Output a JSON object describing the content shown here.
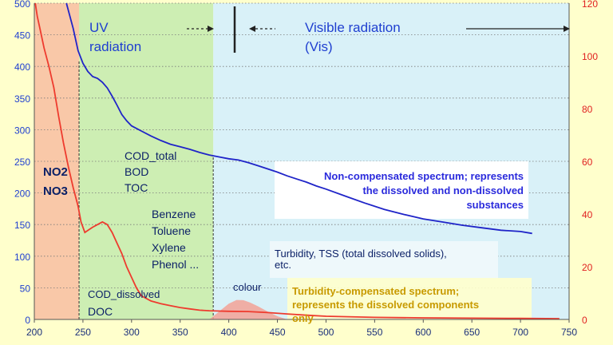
{
  "colors": {
    "background": "#ffffcc",
    "uv_band": "#f9c8a8",
    "organics_band": "#cdeeb3",
    "vis_band": "#d9f1f8",
    "non_compensated_line": "#1f24c8",
    "compensated_line": "#ee3b2e",
    "left_axis_text": "#1f3fd0",
    "right_axis_text": "#e02020",
    "colour_fill": "#f2a296",
    "highlight_text": "#c89a00",
    "dark_text": "#0a1f66"
  },
  "chart_data": {
    "type": "line",
    "x_ticks": [
      200,
      250,
      300,
      350,
      400,
      450,
      500,
      550,
      600,
      650,
      700,
      750
    ],
    "xlim": [
      200,
      750
    ],
    "y_left_ticks": [
      0,
      50,
      100,
      150,
      200,
      250,
      300,
      350,
      400,
      450,
      500
    ],
    "ylim_left": [
      0,
      500
    ],
    "y_right_ticks": [
      0,
      20,
      40,
      60,
      80,
      100,
      120
    ],
    "ylim_right": [
      0,
      120
    ],
    "grid": "horizontal dotted",
    "series": [
      {
        "axis": "left",
        "points": [
          [
            233,
            500
          ],
          [
            240,
            460
          ],
          [
            245,
            425
          ],
          [
            250,
            405
          ],
          [
            255,
            392
          ],
          [
            260,
            384
          ],
          [
            265,
            381
          ],
          [
            270,
            375
          ],
          [
            275,
            366
          ],
          [
            280,
            353
          ],
          [
            285,
            339
          ],
          [
            290,
            324
          ],
          [
            295,
            314
          ],
          [
            300,
            306
          ],
          [
            310,
            298
          ],
          [
            320,
            290
          ],
          [
            330,
            283
          ],
          [
            340,
            277
          ],
          [
            350,
            273
          ],
          [
            360,
            269
          ],
          [
            370,
            264
          ],
          [
            380,
            260
          ],
          [
            390,
            257
          ],
          [
            400,
            254
          ],
          [
            410,
            252
          ],
          [
            420,
            248
          ],
          [
            430,
            243
          ],
          [
            440,
            238
          ],
          [
            450,
            233
          ],
          [
            460,
            227
          ],
          [
            470,
            222
          ],
          [
            480,
            217
          ],
          [
            490,
            211
          ],
          [
            500,
            206
          ],
          [
            520,
            195
          ],
          [
            540,
            184
          ],
          [
            560,
            174
          ],
          [
            580,
            166
          ],
          [
            600,
            159
          ],
          [
            620,
            154
          ],
          [
            640,
            149
          ],
          [
            660,
            145
          ],
          [
            680,
            141
          ],
          [
            700,
            139
          ],
          [
            712,
            136
          ]
        ]
      },
      {
        "axis": "right",
        "points": [
          [
            201,
            120
          ],
          [
            203,
            115
          ],
          [
            206,
            110
          ],
          [
            210,
            103
          ],
          [
            215,
            96
          ],
          [
            220,
            88
          ],
          [
            225,
            77
          ],
          [
            230,
            67
          ],
          [
            235,
            58
          ],
          [
            240,
            50
          ],
          [
            245,
            43
          ],
          [
            248,
            37
          ],
          [
            252,
            33
          ],
          [
            256,
            34
          ],
          [
            260,
            35
          ],
          [
            265,
            36
          ],
          [
            270,
            37
          ],
          [
            275,
            36
          ],
          [
            280,
            33
          ],
          [
            285,
            29
          ],
          [
            290,
            25
          ],
          [
            295,
            20
          ],
          [
            300,
            16
          ],
          [
            305,
            12
          ],
          [
            310,
            9
          ],
          [
            320,
            7
          ],
          [
            330,
            6
          ],
          [
            340,
            5.2
          ],
          [
            350,
            4.5
          ],
          [
            360,
            4
          ],
          [
            370,
            3.5
          ],
          [
            380,
            3.3
          ],
          [
            400,
            3.1
          ],
          [
            420,
            3
          ],
          [
            440,
            2.6
          ],
          [
            460,
            2.1
          ],
          [
            480,
            1.6
          ],
          [
            500,
            1.2
          ],
          [
            550,
            0.8
          ],
          [
            600,
            0.6
          ],
          [
            650,
            0.5
          ],
          [
            700,
            0.4
          ],
          [
            740,
            0.3
          ]
        ]
      }
    ],
    "colour_peak": [
      [
        380,
        0
      ],
      [
        390,
        3
      ],
      [
        400,
        6
      ],
      [
        408,
        7.4
      ],
      [
        415,
        7.3
      ],
      [
        422,
        6.4
      ],
      [
        430,
        5
      ],
      [
        440,
        3
      ],
      [
        450,
        1.2
      ],
      [
        460,
        0
      ]
    ],
    "regions": [
      {
        "from": 200,
        "to": 246
      },
      {
        "from": 246,
        "to": 384
      },
      {
        "from": 384,
        "to": 750
      }
    ],
    "dashed_markers": [
      {
        "x": 246,
        "from": 0,
        "to": 410
      },
      {
        "x": 384,
        "from": 0,
        "to": 258
      }
    ],
    "labels": {
      "uv": "UV\nradiation",
      "vis": "Visible radiation\n(Vis)",
      "no": "NO2\nNO3",
      "cod_total": "COD_total\nBOD\nTOC",
      "aromatics": "Benzene\nToluene\nXylene\nPhenol ...",
      "cod_dissolved": "COD_dissolved",
      "doc": "DOC",
      "colour": "colour",
      "non_compensated": "Non-compensated spectrum; represents\nthe dissolved and non-dissolved\nsubstances",
      "turbidity": "Turbidity, TSS (total dissolved solids),\netc.",
      "compensated": "Turbidity-compensated spectrum;\nrepresents the dissolved components\nonly"
    }
  }
}
